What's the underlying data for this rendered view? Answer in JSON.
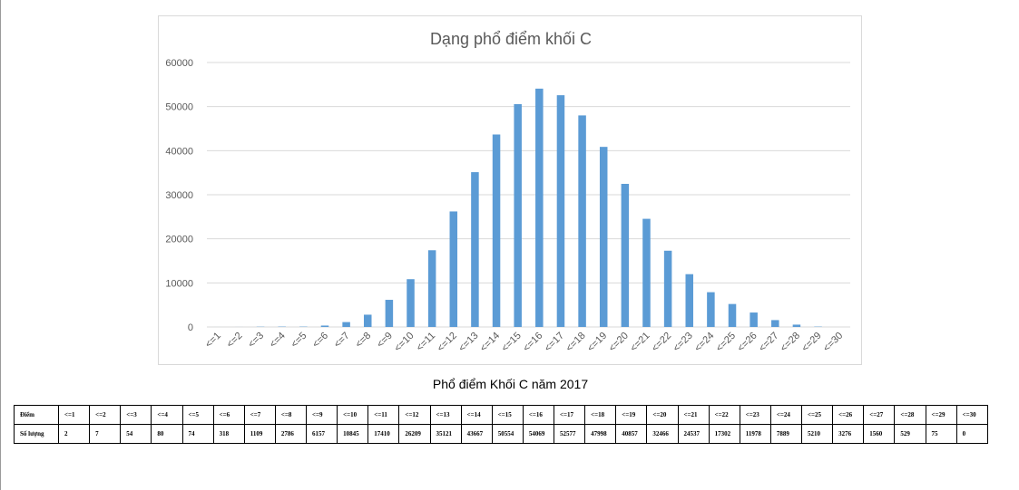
{
  "chart_data": {
    "type": "bar",
    "title": "Dạng phổ điểm khối C",
    "categories": [
      "<=1",
      "<=2",
      "<=3",
      "<=4",
      "<=5",
      "<=6",
      "<=7",
      "<=8",
      "<=9",
      "<=10",
      "<=11",
      "<=12",
      "<=13",
      "<=14",
      "<=15",
      "<=16",
      "<=17",
      "<=18",
      "<=19",
      "<=20",
      "<=21",
      "<=22",
      "<=23",
      "<=24",
      "<=25",
      "<=26",
      "<=27",
      "<=28",
      "<=29",
      "<=30"
    ],
    "values": [
      2,
      7,
      54,
      80,
      74,
      318,
      1109,
      2786,
      6157,
      10845,
      17410,
      26209,
      35121,
      43667,
      50554,
      54069,
      52577,
      47998,
      40857,
      32466,
      24537,
      17302,
      11978,
      7889,
      5210,
      3276,
      1560,
      529,
      75,
      0
    ],
    "ylim": [
      0,
      60000
    ],
    "yticks": [
      0,
      10000,
      20000,
      30000,
      40000,
      50000,
      60000
    ],
    "xlabel": "",
    "ylabel": "",
    "grid": true,
    "bar_color": "#5b9bd5",
    "gridline_color": "#d9d9d9"
  },
  "caption": "Phổ điểm Khối C năm 2017",
  "table": {
    "row1_label": "Điểm",
    "row2_label": "Số lượng",
    "headers": [
      "<=1",
      "<=2",
      "<=3",
      "<=4",
      "<=5",
      "<=6",
      "<=7",
      "<=8",
      "<=9",
      "<=10",
      "<=11",
      "<=12",
      "<=13",
      "<=14",
      "<=15",
      "<=16",
      "<=17",
      "<=18",
      "<=19",
      "<=20",
      "<=21",
      "<=22",
      "<=23",
      "<=24",
      "<=25",
      "<=26",
      "<=27",
      "<=28",
      "<=29",
      "<=30"
    ],
    "counts": [
      "2",
      "7",
      "54",
      "80",
      "74",
      "318",
      "1109",
      "2786",
      "6157",
      "10845",
      "17410",
      "26209",
      "35121",
      "43667",
      "50554",
      "54069",
      "52577",
      "47998",
      "40857",
      "32466",
      "24537",
      "17302",
      "11978",
      "7889",
      "5210",
      "3276",
      "1560",
      "529",
      "75",
      "0"
    ]
  }
}
